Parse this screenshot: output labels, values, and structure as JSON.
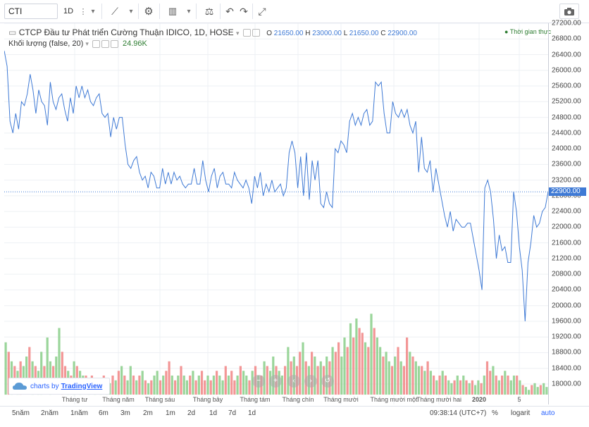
{
  "toolbar": {
    "symbol": "CTI",
    "interval": "1D",
    "more_glyph": "⋮",
    "dropdown_glyph": "▾",
    "chart_type_glyph": "⟋",
    "indicators_glyph": "▥",
    "compare_glyph": "⚖",
    "settings_glyph": "⚙",
    "undo_glyph": "↶",
    "redo_glyph": "↷",
    "fullscreen_glyph": "⤢",
    "camera_glyph": "📷"
  },
  "legend": {
    "title": "CTCP Đầu tư Phát triển Cường Thuận IDICO, 1D, HOSE",
    "o_label": "O",
    "o_val": "21650.00",
    "h_label": "H",
    "h_val": "23000.00",
    "l_label": "L",
    "l_val": "21650.00",
    "c_label": "C",
    "c_val": "22900.00",
    "volume_title": "Khối lượng (false, 20)",
    "volume_val": "24.96K",
    "realtime": "Thời gian thực"
  },
  "branding": {
    "prefix": "charts by",
    "name": "TradingView"
  },
  "price_axis": {
    "ticks": [
      "27200.00",
      "26800.00",
      "26400.00",
      "26000.00",
      "25600.00",
      "25200.00",
      "24800.00",
      "24400.00",
      "24000.00",
      "23600.00",
      "23200.00",
      "22800.00",
      "22400.00",
      "22000.00",
      "21600.00",
      "21200.00",
      "20800.00",
      "20400.00",
      "20000.00",
      "19600.00",
      "19200.00",
      "18800.00",
      "18400.00",
      "18000.00"
    ],
    "last_price": "22900.00"
  },
  "time_axis": {
    "labels": [
      "Tháng tư",
      "Tháng năm",
      "Tháng sáu",
      "Tháng bảy",
      "Tháng tám",
      "Tháng chín",
      "Tháng mười",
      "Tháng mười một",
      "Tháng mười hai",
      "2020",
      "5"
    ]
  },
  "ranges": [
    "5năm",
    "2năm",
    "1năm",
    "6m",
    "3m",
    "2m",
    "1m",
    "2d",
    "1d",
    "7d",
    "1d"
  ],
  "bottom_right": {
    "time": "09:38:14 (UTC+7)",
    "percent": "%",
    "log": "logarit",
    "auto": "auto"
  },
  "colors": {
    "line": "#3f7ad5",
    "vol_up": "#5cb85c",
    "vol_down": "#ef5350",
    "accent": "#2962ff"
  },
  "chart_data": {
    "type": "line",
    "title": "CTCP Đầu tư Phát triển Cường Thuận IDICO, 1D, HOSE",
    "ylim": [
      17800,
      27300
    ],
    "grid": true,
    "series": [
      {
        "name": "Close",
        "values": [
          26500,
          26100,
          24700,
          24400,
          24900,
          24500,
          25200,
          25100,
          25400,
          25900,
          25500,
          24900,
          25500,
          25200,
          25100,
          24600,
          25700,
          25200,
          25000,
          25300,
          25400,
          25000,
          24700,
          25300,
          24900,
          25600,
          25300,
          25600,
          25300,
          25500,
          25200,
          25100,
          25300,
          25400,
          24900,
          24800,
          24900,
          24300,
          24800,
          24500,
          24800,
          24800,
          24100,
          23600,
          23500,
          23700,
          23800,
          23400,
          23200,
          23300,
          23000,
          23400,
          23300,
          23000,
          23000,
          23500,
          23100,
          23400,
          23100,
          23400,
          23200,
          23300,
          23100,
          23000,
          23100,
          23100,
          23500,
          23100,
          23100,
          23700,
          23200,
          22900,
          23300,
          23500,
          23000,
          23300,
          23400,
          23100,
          23100,
          23000,
          23400,
          23200,
          23100,
          23000,
          23200,
          23000,
          22600,
          23300,
          23000,
          23400,
          22800,
          23100,
          22900,
          23200,
          22900,
          23000,
          23100,
          22800,
          23000,
          23900,
          24200,
          23900,
          23000,
          23800,
          22800,
          23900,
          22700,
          23700,
          23200,
          23700,
          22600,
          22500,
          22900,
          22600,
          22500,
          24000,
          23900,
          24200,
          24100,
          23900,
          24700,
          24900,
          24600,
          24800,
          24600,
          24900,
          25000,
          24600,
          24700,
          25700,
          25600,
          25700,
          24900,
          24400,
          24400,
          25200,
          24900,
          24800,
          25000,
          24800,
          25000,
          24600,
          24400,
          24700,
          23400,
          24300,
          23500,
          23400,
          23700,
          22900,
          23500,
          23100,
          22700,
          22300,
          22000,
          22400,
          21900,
          22200,
          22100,
          22000,
          22000,
          22100,
          22100,
          21700,
          21300,
          20900,
          20400,
          23000,
          23200,
          22900,
          22200,
          21200,
          21800,
          21400,
          21500,
          21100,
          21100,
          22900,
          22400,
          21500,
          20900,
          19600,
          21100,
          21600,
          22300,
          22000,
          22100,
          22400,
          22500,
          22900
        ]
      },
      {
        "name": "Khối lượng",
        "values": [
          0.55,
          0.45,
          0.35,
          0.3,
          0.25,
          0.35,
          0.3,
          0.4,
          0.5,
          0.35,
          0.3,
          0.25,
          0.45,
          0.3,
          0.6,
          0.35,
          0.3,
          0.4,
          0.7,
          0.45,
          0.3,
          0.25,
          0.2,
          0.35,
          0.3,
          0.25,
          0.2,
          0.2,
          0.15,
          0.2,
          0.15,
          0.1,
          0.15,
          0.2,
          0.15,
          0.12,
          0.2,
          0.15,
          0.25,
          0.3,
          0.2,
          0.15,
          0.3,
          0.2,
          0.15,
          0.2,
          0.25,
          0.15,
          0.12,
          0.15,
          0.2,
          0.25,
          0.15,
          0.2,
          0.25,
          0.35,
          0.2,
          0.15,
          0.2,
          0.3,
          0.2,
          0.15,
          0.2,
          0.25,
          0.15,
          0.2,
          0.25,
          0.15,
          0.2,
          0.15,
          0.2,
          0.25,
          0.2,
          0.15,
          0.3,
          0.2,
          0.25,
          0.15,
          0.2,
          0.3,
          0.25,
          0.2,
          0.15,
          0.25,
          0.3,
          0.2,
          0.2,
          0.35,
          0.3,
          0.25,
          0.4,
          0.3,
          0.25,
          0.2,
          0.3,
          0.5,
          0.35,
          0.4,
          0.3,
          0.45,
          0.55,
          0.35,
          0.3,
          0.45,
          0.4,
          0.3,
          0.35,
          0.3,
          0.4,
          0.35,
          0.5,
          0.45,
          0.55,
          0.4,
          0.6,
          0.5,
          0.75,
          0.6,
          0.8,
          0.7,
          0.65,
          0.55,
          0.5,
          0.85,
          0.7,
          0.6,
          0.5,
          0.4,
          0.45,
          0.35,
          0.3,
          0.4,
          0.5,
          0.35,
          0.3,
          0.6,
          0.45,
          0.4,
          0.35,
          0.3,
          0.3,
          0.25,
          0.35,
          0.25,
          0.2,
          0.15,
          0.2,
          0.25,
          0.2,
          0.15,
          0.12,
          0.15,
          0.2,
          0.15,
          0.2,
          0.15,
          0.12,
          0.15,
          0.1,
          0.15,
          0.12,
          0.2,
          0.35,
          0.25,
          0.3,
          0.2,
          0.15,
          0.2,
          0.25,
          0.2,
          0.15,
          0.2,
          0.2,
          0.15,
          0.1,
          0.08,
          0.05,
          0.1,
          0.12,
          0.08,
          0.1,
          0.12,
          0.08
        ],
        "down": [
          0,
          1,
          0,
          1,
          0,
          1,
          0,
          0,
          1,
          0,
          1,
          0,
          0,
          1,
          0,
          0,
          1,
          0,
          0,
          1,
          1,
          0,
          1,
          0,
          1,
          0,
          0,
          1,
          0,
          1,
          0,
          1,
          0,
          1,
          0,
          0,
          1,
          0,
          1,
          0,
          1,
          0,
          0,
          1,
          0,
          1,
          0,
          1,
          0,
          1,
          0,
          0,
          1,
          0,
          1,
          1,
          0,
          1,
          0,
          1,
          0,
          0,
          1,
          0,
          1,
          0,
          1,
          1,
          0,
          1,
          0,
          1,
          0,
          0,
          1,
          0,
          1,
          1,
          0,
          1,
          0,
          0,
          1,
          0,
          1,
          0,
          1,
          0,
          1,
          0,
          0,
          1,
          0,
          0,
          1,
          0,
          1,
          0,
          1,
          1,
          0,
          1,
          0,
          1,
          0,
          1,
          0,
          1,
          0,
          1,
          0,
          1,
          1,
          0,
          0,
          1,
          0,
          1,
          0,
          1,
          1,
          0,
          1,
          0,
          1,
          0,
          0,
          1,
          0,
          0,
          1,
          0,
          1,
          0,
          1,
          1,
          0,
          1,
          0,
          0,
          1,
          0,
          1,
          0,
          1,
          0,
          1,
          0,
          1,
          0,
          0,
          1,
          0,
          1,
          0,
          1,
          0,
          1,
          0,
          0,
          1,
          0,
          1,
          1,
          0,
          1,
          0,
          1,
          0,
          1,
          0,
          0,
          1,
          0,
          1,
          0,
          0,
          1,
          0,
          0,
          1,
          0,
          0,
          1,
          0,
          0
        ]
      }
    ]
  }
}
